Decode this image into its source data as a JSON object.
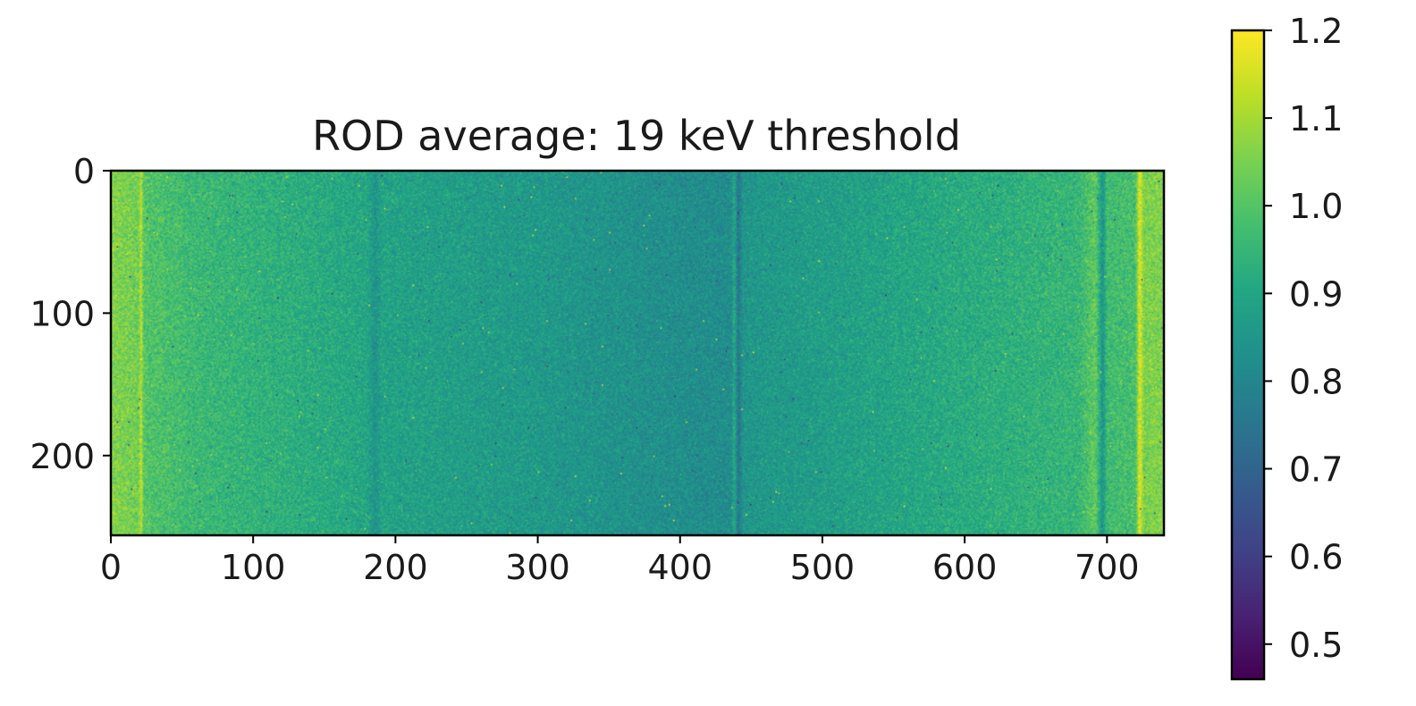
{
  "chart_data": {
    "type": "heatmap",
    "title": "ROD average: 19 keV threshold",
    "xlabel": "",
    "ylabel": "",
    "xlim": [
      0,
      740
    ],
    "ylim": [
      256,
      0
    ],
    "x_ticks": [
      0,
      100,
      200,
      300,
      400,
      500,
      600,
      700
    ],
    "y_ticks": [
      0,
      100,
      200
    ],
    "colormap": "viridis",
    "colorbar": {
      "vmin": 0.46,
      "vmax": 1.2,
      "ticks": [
        "0.5",
        "0.6",
        "0.7",
        "0.8",
        "0.9",
        "1.0",
        "1.1",
        "1.2"
      ]
    },
    "column_profile": [
      {
        "x": 0,
        "value": 1.06
      },
      {
        "x": 20,
        "value": 1.04
      },
      {
        "x": 21,
        "value": 1.15
      },
      {
        "x": 23,
        "value": 1.0
      },
      {
        "x": 60,
        "value": 0.96
      },
      {
        "x": 180,
        "value": 0.9
      },
      {
        "x": 186,
        "value": 0.84
      },
      {
        "x": 190,
        "value": 0.89
      },
      {
        "x": 300,
        "value": 0.86
      },
      {
        "x": 380,
        "value": 0.83
      },
      {
        "x": 436,
        "value": 0.82
      },
      {
        "x": 438,
        "value": 0.92
      },
      {
        "x": 441,
        "value": 0.74
      },
      {
        "x": 444,
        "value": 0.85
      },
      {
        "x": 560,
        "value": 0.9
      },
      {
        "x": 680,
        "value": 0.95
      },
      {
        "x": 692,
        "value": 1.02
      },
      {
        "x": 697,
        "value": 0.84
      },
      {
        "x": 700,
        "value": 0.97
      },
      {
        "x": 720,
        "value": 0.98
      },
      {
        "x": 723,
        "value": 1.17
      },
      {
        "x": 726,
        "value": 1.05
      },
      {
        "x": 740,
        "value": 1.06
      }
    ],
    "noise_std": 0.035
  }
}
